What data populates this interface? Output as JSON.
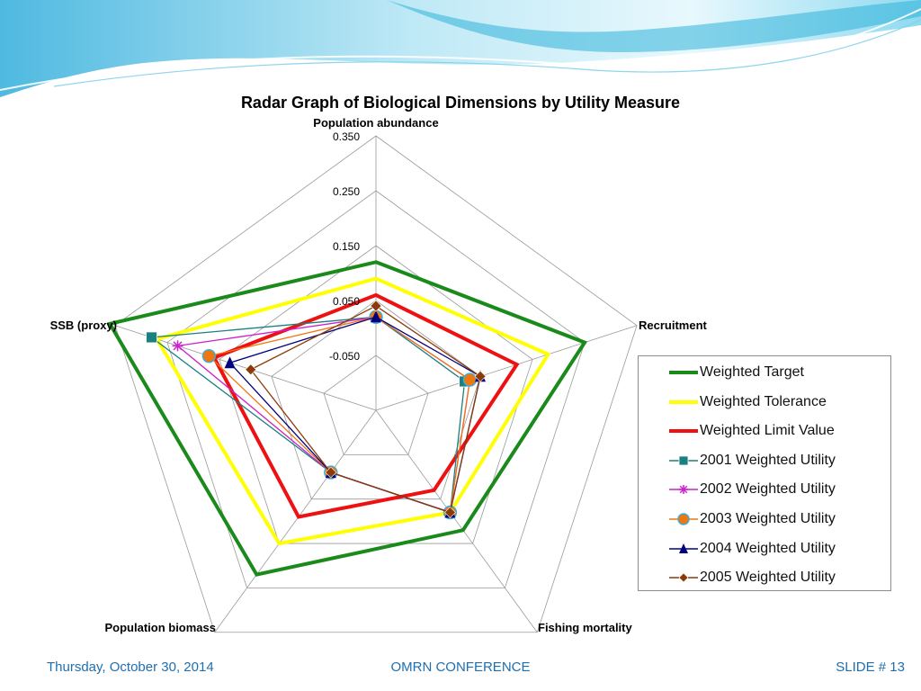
{
  "footer": {
    "date": "Thursday, October 30, 2014",
    "center": "OMRN CONFERENCE",
    "slide": "SLIDE # 13"
  },
  "colors": {
    "footer_text": "#1f6fb0",
    "banner_light": "#c9eef8",
    "banner_dark": "#5fc3e6"
  },
  "chart_data": {
    "type": "radar",
    "title": "Radar Graph of Biological Dimensions by Utility Measure",
    "axes": [
      "Population abundance",
      "Recruitment",
      "Fishing mortality",
      "Population biomass",
      "SSB (proxy)"
    ],
    "rmin": -0.15,
    "rmax": 0.35,
    "tick_values": [
      -0.05,
      0.05,
      0.15,
      0.25,
      0.35
    ],
    "tick_labels": [
      "-0.050",
      "0.050",
      "0.150",
      "0.250",
      "0.350"
    ],
    "legend_position": "right",
    "series": [
      {
        "name": "Weighted Target",
        "color": "#1a8a1a",
        "marker": "none",
        "width": 4,
        "values": [
          0.12,
          0.25,
          0.12,
          0.22,
          0.36
        ]
      },
      {
        "name": "Weighted Tolerance",
        "color": "#ffff00",
        "marker": "none",
        "width": 4,
        "values": [
          0.09,
          0.18,
          0.08,
          0.15,
          0.27
        ]
      },
      {
        "name": "Weighted Limit Value",
        "color": "#ee1111",
        "marker": "none",
        "width": 4,
        "values": [
          0.06,
          0.12,
          0.03,
          0.09,
          0.16
        ]
      },
      {
        "name": "2001 Weighted Utility",
        "color": "#1a8080",
        "marker": "square",
        "width": 1.3,
        "values": [
          0.02,
          0.02,
          0.08,
          -0.01,
          0.28
        ]
      },
      {
        "name": "2002 Weighted Utility",
        "color": "#cc22cc",
        "marker": "star",
        "width": 1.3,
        "values": [
          0.02,
          0.03,
          0.08,
          -0.01,
          0.23
        ]
      },
      {
        "name": "2003 Weighted Utility",
        "color": "#ee7711",
        "marker": "circle",
        "width": 1.3,
        "values": [
          0.02,
          0.03,
          0.08,
          -0.01,
          0.17
        ]
      },
      {
        "name": "2004 Weighted Utility",
        "color": "#000080",
        "marker": "triangle",
        "width": 1.3,
        "values": [
          0.02,
          0.05,
          0.08,
          -0.01,
          0.13
        ]
      },
      {
        "name": "2005 Weighted Utility",
        "color": "#8b3a0a",
        "marker": "diamond",
        "width": 1.3,
        "values": [
          0.04,
          0.05,
          0.08,
          -0.01,
          0.09
        ]
      }
    ]
  }
}
